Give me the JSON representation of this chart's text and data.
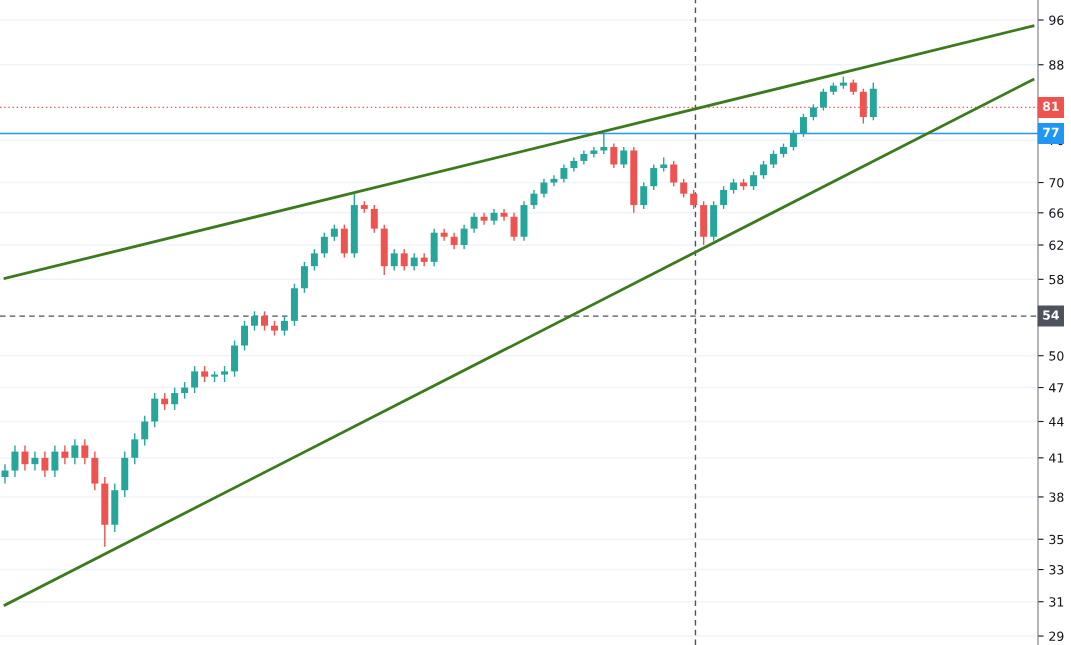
{
  "chart_data": {
    "type": "candlestick",
    "categories": [
      null,
      null,
      null,
      null,
      null,
      null,
      null,
      null,
      null,
      null,
      null,
      null,
      null,
      null,
      null,
      null,
      null,
      null,
      null,
      null,
      null,
      null,
      null,
      null,
      null,
      null,
      null,
      null,
      null,
      null,
      null,
      null,
      null,
      null,
      null,
      null,
      null,
      null,
      null,
      null,
      null,
      null,
      null,
      null,
      null,
      null,
      null,
      null,
      null,
      null,
      null,
      null,
      null,
      null,
      null,
      null,
      null,
      null,
      null,
      null,
      null,
      null,
      null,
      null,
      null,
      null,
      null,
      null,
      null,
      null,
      null,
      null,
      null,
      null,
      null,
      null,
      null,
      null,
      null,
      null,
      null,
      null,
      null,
      null,
      null,
      null,
      null,
      null,
      null,
      null,
      null,
      null,
      null,
      null,
      null,
      null,
      null,
      null,
      null,
      null,
      null,
      null,
      null,
      null
    ],
    "ohlc": [
      [
        39.5,
        40.5,
        39,
        40
      ],
      [
        40,
        42,
        39.5,
        41.5
      ],
      [
        41.5,
        42,
        40,
        40.5
      ],
      [
        40.5,
        41.5,
        40,
        41
      ],
      [
        41,
        41.5,
        39.5,
        40
      ],
      [
        40,
        42,
        39.5,
        41.5
      ],
      [
        41.5,
        42,
        40.5,
        41
      ],
      [
        41,
        42.5,
        40.5,
        42
      ],
      [
        42,
        42.5,
        40.5,
        41
      ],
      [
        41,
        41.5,
        38.5,
        39
      ],
      [
        39,
        39.5,
        34.5,
        36
      ],
      [
        36,
        39,
        35.5,
        38.5
      ],
      [
        38.5,
        41.5,
        38,
        41
      ],
      [
        41,
        43,
        40.5,
        42.5
      ],
      [
        42.5,
        44.5,
        42,
        44
      ],
      [
        44,
        46.5,
        43.5,
        46
      ],
      [
        46,
        46.5,
        45,
        45.5
      ],
      [
        45.5,
        47,
        45,
        46.5
      ],
      [
        46.5,
        47.5,
        46,
        47
      ],
      [
        47,
        49,
        46.5,
        48.5
      ],
      [
        48.5,
        49,
        47.5,
        48
      ],
      [
        48,
        48.5,
        47.5,
        48.2
      ],
      [
        48.2,
        49,
        47.5,
        48.5
      ],
      [
        48.5,
        51.5,
        48,
        51
      ],
      [
        51,
        53.5,
        50.5,
        53
      ],
      [
        53,
        54.5,
        52.5,
        54
      ],
      [
        54,
        54.5,
        52.5,
        53
      ],
      [
        53,
        53.5,
        52,
        52.5
      ],
      [
        52.5,
        54,
        52,
        53.5
      ],
      [
        53.5,
        57.5,
        53,
        57
      ],
      [
        57,
        60,
        56.5,
        59.5
      ],
      [
        59.5,
        61.5,
        59,
        61
      ],
      [
        61,
        63.5,
        60.5,
        63
      ],
      [
        63,
        64.5,
        62.5,
        64
      ],
      [
        64,
        64.5,
        60.5,
        61
      ],
      [
        61,
        68.5,
        60.5,
        67
      ],
      [
        67,
        67.5,
        66,
        66.5
      ],
      [
        66.5,
        67,
        63.5,
        64
      ],
      [
        64,
        64.5,
        58.5,
        59.5
      ],
      [
        59.5,
        61.5,
        59,
        61
      ],
      [
        61,
        61.5,
        59,
        59.5
      ],
      [
        59.5,
        61,
        59,
        60.5
      ],
      [
        60.5,
        61,
        59.5,
        60
      ],
      [
        60,
        64,
        59.5,
        63.5
      ],
      [
        63.5,
        64,
        62.5,
        63
      ],
      [
        63,
        63.5,
        61.5,
        62
      ],
      [
        62,
        64.5,
        61.5,
        64
      ],
      [
        64,
        66,
        63.5,
        65.5
      ],
      [
        65.5,
        66,
        64.5,
        65
      ],
      [
        65,
        66.5,
        64.5,
        66
      ],
      [
        66,
        66.5,
        65,
        65.5
      ],
      [
        65.5,
        66,
        62.5,
        63
      ],
      [
        63,
        67.5,
        62.5,
        67
      ],
      [
        67,
        69,
        66.5,
        68.5
      ],
      [
        68.5,
        70.5,
        68,
        70
      ],
      [
        70,
        71,
        69.5,
        70.5
      ],
      [
        70.5,
        72.5,
        70,
        72
      ],
      [
        72,
        73.5,
        71.5,
        73
      ],
      [
        73,
        74.5,
        72.5,
        74
      ],
      [
        74,
        75,
        73.5,
        74.5
      ],
      [
        74.5,
        77,
        74,
        75
      ],
      [
        75,
        75.5,
        72,
        72.5
      ],
      [
        72.5,
        75,
        72,
        74.5
      ],
      [
        74.5,
        75,
        66,
        67
      ],
      [
        67,
        70,
        66.5,
        69.5
      ],
      [
        69.5,
        72.5,
        69,
        72
      ],
      [
        72,
        73.5,
        71.5,
        72.5
      ],
      [
        72.5,
        73,
        69.5,
        70
      ],
      [
        70,
        70.5,
        68,
        68.5
      ],
      [
        68.5,
        69,
        66.5,
        67
      ],
      [
        67,
        67.5,
        62,
        63
      ],
      [
        63,
        67.5,
        62.5,
        67
      ],
      [
        67,
        69.5,
        66.5,
        69
      ],
      [
        69,
        70.5,
        68.5,
        70
      ],
      [
        70,
        70.5,
        69,
        69.5
      ],
      [
        69.5,
        71.5,
        69,
        71
      ],
      [
        71,
        73,
        70.5,
        72.5
      ],
      [
        72.5,
        74.5,
        72,
        74
      ],
      [
        74,
        75.5,
        73.5,
        75
      ],
      [
        75,
        77.5,
        74.5,
        77
      ],
      [
        77,
        80,
        76.5,
        79.5
      ],
      [
        79.5,
        81.5,
        79,
        81
      ],
      [
        81,
        84,
        80.5,
        83.5
      ],
      [
        83.5,
        85,
        83,
        84.5
      ],
      [
        84.5,
        86,
        84,
        85
      ],
      [
        85,
        85.5,
        83,
        83.5
      ],
      [
        83.5,
        84,
        78.5,
        79.5
      ],
      [
        79.5,
        85,
        79,
        84
      ],
      null,
      null,
      null,
      null,
      null,
      null,
      null,
      null,
      null,
      null,
      null,
      null,
      null,
      null,
      null,
      null
    ],
    "colors": [
      "#26a69a",
      "#26a69a",
      "#ef5350",
      "#26a69a",
      "#ef5350",
      "#26a69a",
      "#ef5350",
      "#26a69a",
      "#ef5350",
      "#ef5350",
      "#ef5350",
      "#26a69a",
      "#26a69a",
      "#26a69a",
      "#26a69a",
      "#26a69a",
      "#ef5350",
      "#26a69a",
      "#26a69a",
      "#26a69a",
      "#ef5350",
      "#26a69a",
      "#26a69a",
      "#26a69a",
      "#26a69a",
      "#26a69a",
      "#ef5350",
      "#ef5350",
      "#26a69a",
      "#26a69a",
      "#26a69a",
      "#26a69a",
      "#26a69a",
      "#26a69a",
      "#ef5350",
      "#26a69a",
      "#ef5350",
      "#ef5350",
      "#ef5350",
      "#26a69a",
      "#ef5350",
      "#26a69a",
      "#ef5350",
      "#26a69a",
      "#ef5350",
      "#ef5350",
      "#26a69a",
      "#26a69a",
      "#ef5350",
      "#26a69a",
      "#ef5350",
      "#ef5350",
      "#26a69a",
      "#26a69a",
      "#26a69a",
      "#26a69a",
      "#26a69a",
      "#26a69a",
      "#26a69a",
      "#26a69a",
      "#26a69a",
      "#ef5350",
      "#26a69a",
      "#ef5350",
      "#26a69a",
      "#26a69a",
      "#26a69a",
      "#ef5350",
      "#ef5350",
      "#ef5350",
      "#ef5350",
      "#26a69a",
      "#26a69a",
      "#26a69a",
      "#ef5350",
      "#26a69a",
      "#26a69a",
      "#26a69a",
      "#26a69a",
      "#26a69a",
      "#26a69a",
      "#26a69a",
      "#26a69a",
      "#26a69a",
      "#26a69a",
      "#ef5350",
      "#ef5350",
      "#26a69a",
      null,
      null,
      null,
      null,
      null,
      null,
      null,
      null,
      null,
      null,
      null,
      null,
      null,
      null,
      null,
      null
    ],
    "series": [
      {
        "type": "line",
        "color": "#3c7a1e",
        "values": [
          58.1,
          null,
          null,
          null,
          null,
          null,
          null,
          null,
          null,
          null,
          null,
          null,
          null,
          null,
          null,
          null,
          null,
          null,
          null,
          null,
          null,
          null,
          null,
          null,
          null,
          null,
          null,
          null,
          null,
          null,
          null,
          null,
          null,
          null,
          null,
          null,
          null,
          null,
          null,
          null,
          null,
          null,
          null,
          null,
          null,
          null,
          null,
          null,
          null,
          null,
          null,
          null,
          null,
          null,
          null,
          null,
          null,
          null,
          null,
          null,
          null,
          null,
          null,
          null,
          null,
          null,
          null,
          null,
          null,
          null,
          null,
          null,
          null,
          null,
          null,
          null,
          null,
          null,
          null,
          null,
          null,
          null,
          null,
          null,
          null,
          null,
          null,
          null,
          null,
          null,
          null,
          null,
          null,
          null,
          null,
          null,
          null,
          null,
          null,
          null,
          null,
          null,
          null,
          94.9
        ]
      },
      {
        "type": "line",
        "color": "#3c7a1e",
        "values": [
          30.8,
          null,
          null,
          null,
          null,
          null,
          null,
          null,
          null,
          null,
          null,
          null,
          null,
          null,
          null,
          null,
          null,
          null,
          null,
          null,
          null,
          null,
          null,
          null,
          null,
          null,
          null,
          null,
          null,
          null,
          null,
          null,
          null,
          null,
          null,
          null,
          null,
          null,
          null,
          null,
          null,
          null,
          null,
          null,
          null,
          null,
          null,
          null,
          null,
          null,
          null,
          null,
          null,
          null,
          null,
          null,
          null,
          null,
          null,
          null,
          null,
          null,
          null,
          null,
          null,
          null,
          null,
          null,
          null,
          null,
          null,
          null,
          null,
          null,
          null,
          null,
          null,
          null,
          null,
          null,
          null,
          null,
          null,
          null,
          null,
          null,
          null,
          null,
          null,
          null,
          null,
          null,
          null,
          null,
          null,
          null,
          null,
          null,
          null,
          null,
          null,
          null,
          null,
          85.5
        ]
      }
    ],
    "ref_lines": [
      {
        "axis": "y",
        "value": 81,
        "label": "81",
        "color": "#ef5350",
        "line_style": "dotted"
      },
      {
        "axis": "y",
        "value": 77,
        "label": "77",
        "color": "#2196f3",
        "line_style": "solid"
      },
      {
        "axis": "y",
        "value": 54,
        "label": "54",
        "color": "#4c525e",
        "line_style": "dashed"
      }
    ],
    "log": "y",
    "ylim": [
      28.5,
      99.8
    ],
    "yticks": [
      29,
      31,
      33,
      35,
      38,
      41,
      44,
      47,
      50,
      58,
      62,
      66,
      70,
      76,
      88,
      96
    ],
    "grid": "y",
    "tick_labels": "y"
  }
}
